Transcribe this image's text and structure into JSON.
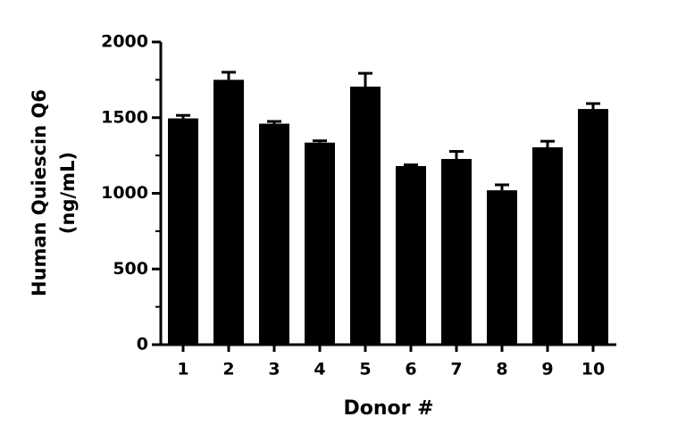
{
  "chart_data": {
    "type": "bar",
    "xlabel": "Donor #",
    "ylabel": [
      "Human Quiescin Q6",
      "(ng/mL)"
    ],
    "categories": [
      "1",
      "2",
      "3",
      "4",
      "5",
      "6",
      "7",
      "8",
      "9",
      "10"
    ],
    "values": [
      1495,
      1750,
      1460,
      1335,
      1705,
      1180,
      1227,
      1020,
      1304,
      1557
    ],
    "errors": [
      20,
      50,
      15,
      12,
      88,
      8,
      50,
      36,
      40,
      36
    ],
    "color": "#000000",
    "ylim": [
      0,
      2000
    ],
    "yticks": [
      0,
      500,
      1000,
      1500,
      2000
    ],
    "minor_yticks": [
      250,
      750,
      1250,
      1750
    ]
  }
}
